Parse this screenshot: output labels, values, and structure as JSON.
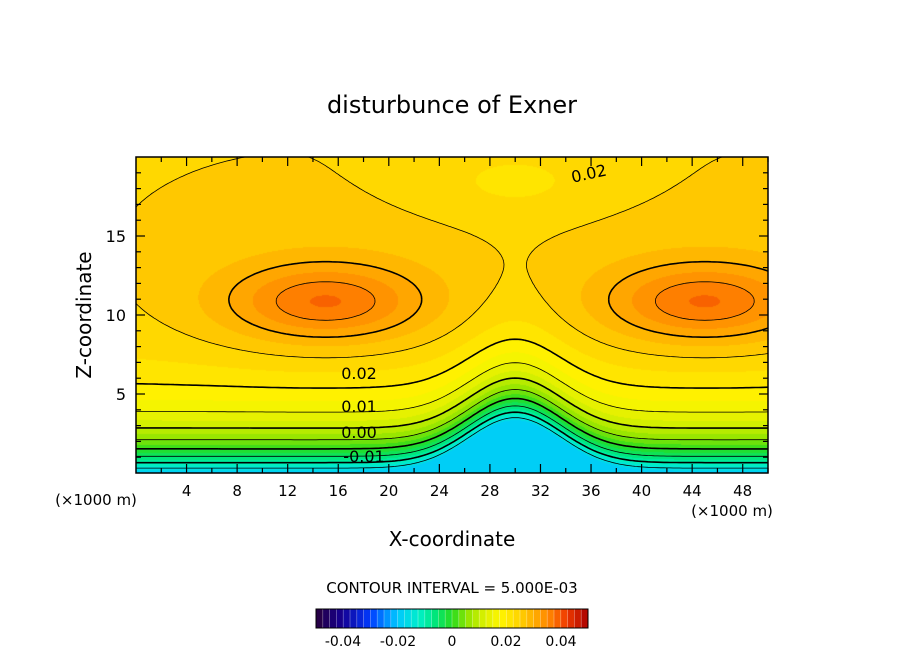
{
  "chart_data": {
    "type": "contour",
    "title": "disturbunce of Exner",
    "xlabel": "X-coordinate",
    "ylabel": "Z-coordinate",
    "x_unit": "(×1000 m)",
    "z_unit": "(×1000 m)",
    "xlim": [
      0,
      50
    ],
    "ylim": [
      0,
      20
    ],
    "x_ticks": [
      "4",
      "8",
      "12",
      "16",
      "20",
      "24",
      "28",
      "32",
      "36",
      "40",
      "44",
      "48"
    ],
    "y_ticks": [
      "5",
      "10",
      "15"
    ],
    "contour_interval_text": "CONTOUR INTERVAL = 5.000E-03",
    "contour_labels": [
      "0.02",
      "0.02",
      "0.01",
      "0.00",
      "-0.01"
    ],
    "colorbar": {
      "range": [
        -0.05,
        0.05
      ],
      "tick_labels": [
        "-0.04",
        "-0.02",
        "0",
        "0.02",
        "0.04"
      ]
    },
    "features": {
      "maxima_centers_x": [
        15,
        45
      ],
      "maxima_center_z": 10.8,
      "ridge_center_x": 30,
      "surface_min_value": -0.02,
      "top_value": 0.025
    },
    "grid": false
  }
}
